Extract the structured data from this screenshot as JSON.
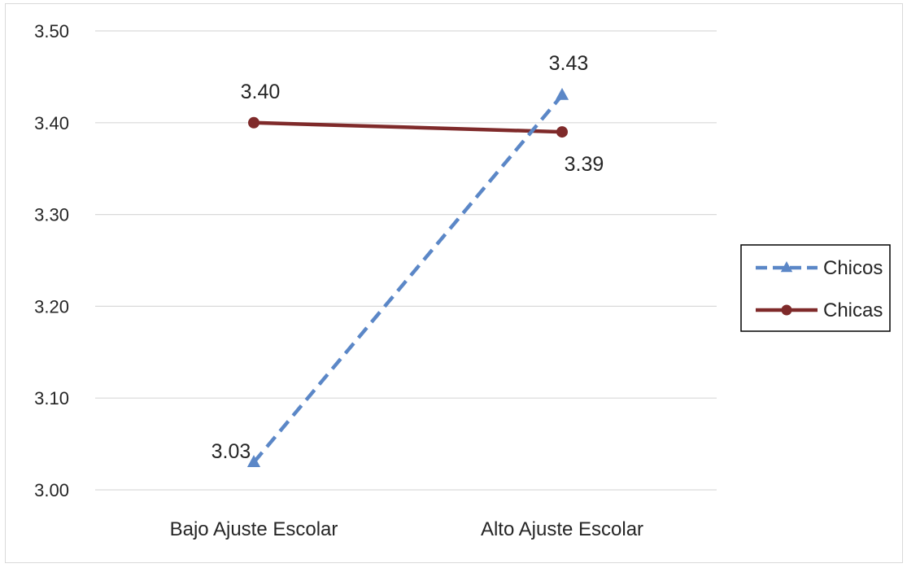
{
  "chart_data": {
    "type": "line",
    "title": "",
    "xlabel": "",
    "ylabel": "",
    "categories": [
      "Bajo Ajuste Escolar",
      "Alto Ajuste  Escolar"
    ],
    "ylim": [
      3.0,
      3.5
    ],
    "yticks": [
      3.0,
      3.1,
      3.2,
      3.3,
      3.4,
      3.5
    ],
    "ytick_labels": [
      "3.00",
      "3.10",
      "3.20",
      "3.30",
      "3.40",
      "3.50"
    ],
    "grid": true,
    "legend_position": "right",
    "series": [
      {
        "name": "Chicos",
        "values": [
          3.03,
          3.43
        ],
        "labels": [
          "3.03",
          "3.43"
        ],
        "color": "#5b87c7",
        "line_style": "dashed",
        "marker": "triangle"
      },
      {
        "name": "Chicas",
        "values": [
          3.4,
          3.39
        ],
        "labels": [
          "3.40",
          "3.39"
        ],
        "color": "#7f2a2a",
        "line_style": "solid",
        "marker": "circle"
      }
    ]
  }
}
